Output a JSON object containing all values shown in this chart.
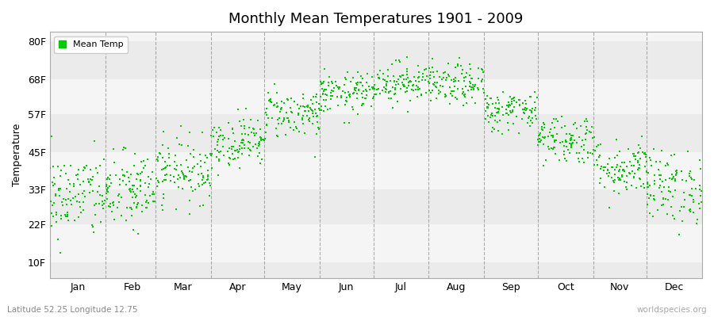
{
  "title": "Monthly Mean Temperatures 1901 - 2009",
  "ylabel": "Temperature",
  "ytick_labels": [
    "10F",
    "22F",
    "33F",
    "45F",
    "57F",
    "68F",
    "80F"
  ],
  "ytick_values": [
    10,
    22,
    33,
    45,
    57,
    68,
    80
  ],
  "ylim": [
    5,
    83
  ],
  "months": [
    "Jan",
    "Feb",
    "Mar",
    "Apr",
    "May",
    "Jun",
    "Jul",
    "Aug",
    "Sep",
    "Oct",
    "Nov",
    "Dec"
  ],
  "month_tick_positions": [
    15.5,
    46,
    74.5,
    105,
    135.5,
    166,
    196.5,
    227.5,
    258,
    288.5,
    319,
    349.5
  ],
  "month_dividers": [
    31,
    59,
    90,
    120,
    151,
    181,
    212,
    243,
    273,
    304,
    334
  ],
  "legend_label": "Mean Temp",
  "marker_color": "#00cc00",
  "bg_color": "#ffffff",
  "band_color_light": "#f5f5f5",
  "band_color_dark": "#ebebeb",
  "subtitle_left": "Latitude 52.25 Longitude 12.75",
  "subtitle_right": "worldspecies.org",
  "monthly_means_C": [
    -0.5,
    0.3,
    4.0,
    9.0,
    14.0,
    17.5,
    19.5,
    19.0,
    14.5,
    9.5,
    4.5,
    1.0
  ],
  "monthly_stds_C": [
    3.8,
    3.5,
    2.8,
    2.2,
    2.2,
    1.8,
    1.8,
    1.8,
    1.8,
    2.2,
    2.5,
    3.2
  ],
  "n_years": 109,
  "seed": 42,
  "xlim": [
    0,
    365
  ],
  "month_days": [
    31,
    28,
    31,
    30,
    31,
    30,
    31,
    31,
    30,
    31,
    30,
    31
  ]
}
